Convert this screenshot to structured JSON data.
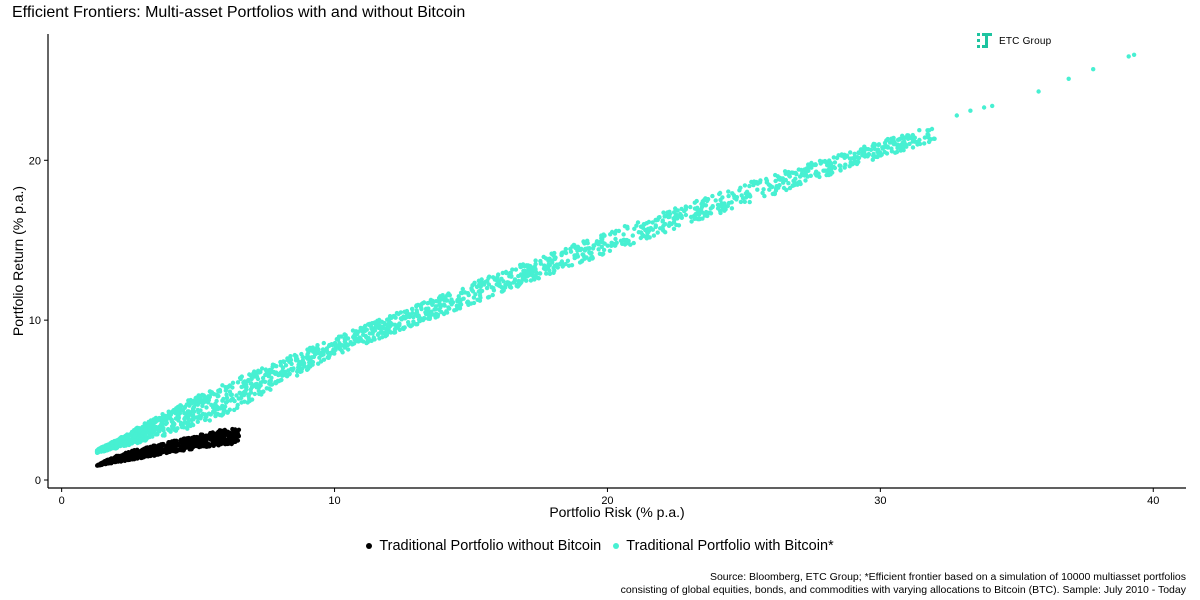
{
  "chart_data": {
    "type": "scatter",
    "title": "Efficient Frontiers: Multi-asset Portfolios with and without Bitcoin",
    "xlabel": "Portfolio Risk (% p.a.)",
    "ylabel": "Portfolio Return (% p.a.)",
    "xlim": [
      -0.5,
      41.2
    ],
    "ylim": [
      -0.5,
      27.9
    ],
    "x_ticks": [
      0,
      10,
      20,
      30,
      40
    ],
    "y_ticks": [
      0,
      10,
      20
    ],
    "grid": false,
    "legend_position": "bottom",
    "series": [
      {
        "name": "Traditional Portfolio without Bitcoin",
        "color": "#000000",
        "frontier_upper": [
          [
            1.3,
            0.9
          ],
          [
            1.6,
            1.2
          ],
          [
            2.0,
            1.5
          ],
          [
            2.5,
            1.8
          ],
          [
            3.0,
            2.0
          ],
          [
            3.5,
            2.2
          ],
          [
            4.0,
            2.4
          ],
          [
            4.5,
            2.6
          ],
          [
            5.0,
            2.8
          ],
          [
            5.5,
            3.0
          ],
          [
            6.0,
            3.2
          ]
        ],
        "frontier_lower": [
          [
            1.3,
            0.9
          ],
          [
            2.0,
            1.1
          ],
          [
            3.0,
            1.4
          ],
          [
            4.0,
            1.7
          ],
          [
            5.0,
            2.0
          ],
          [
            6.0,
            2.2
          ],
          [
            6.5,
            2.3
          ]
        ]
      },
      {
        "name": "Traditional Portfolio with Bitcoin*",
        "color": "#47f0d2",
        "frontier_upper": [
          [
            1.3,
            1.9
          ],
          [
            2.0,
            2.5
          ],
          [
            3.0,
            3.5
          ],
          [
            4.0,
            4.4
          ],
          [
            5.0,
            5.3
          ],
          [
            7.0,
            6.8
          ],
          [
            10.0,
            8.9
          ],
          [
            15.0,
            12.3
          ],
          [
            20.0,
            15.5
          ],
          [
            25.0,
            18.5
          ],
          [
            30.0,
            21.2
          ],
          [
            32.0,
            22.2
          ]
        ],
        "frontier_lower": [
          [
            1.3,
            1.7
          ],
          [
            3.0,
            2.4
          ],
          [
            5.0,
            3.4
          ],
          [
            6.5,
            4.5
          ],
          [
            10.0,
            7.8
          ],
          [
            15.0,
            11.0
          ],
          [
            20.0,
            14.2
          ],
          [
            25.0,
            17.2
          ],
          [
            30.0,
            20.2
          ],
          [
            32.0,
            21.2
          ]
        ],
        "outliers": [
          [
            32.8,
            22.8
          ],
          [
            33.3,
            23.1
          ],
          [
            33.8,
            23.3
          ],
          [
            34.1,
            23.4
          ],
          [
            35.8,
            24.3
          ],
          [
            36.9,
            25.1
          ],
          [
            37.8,
            25.7
          ],
          [
            39.1,
            26.5
          ],
          [
            39.3,
            26.6
          ]
        ]
      }
    ]
  },
  "logo": {
    "text": "ETC Group",
    "color": "#1ec4a0"
  },
  "source": {
    "line1": "Source: Bloomberg, ETC Group; *Efficient frontier based on a simulation of 10000 multiasset portfolios",
    "line2": "consisting of global equities, bonds, and commodities with varying allocations to Bitcoin (BTC). Sample: July 2010 - Today"
  }
}
